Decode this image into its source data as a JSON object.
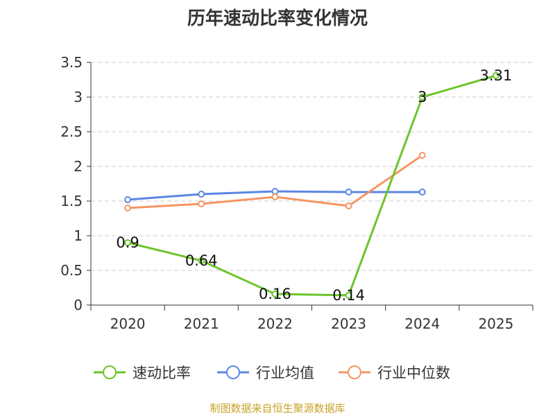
{
  "chart_data": {
    "type": "line",
    "title": "历年速动比率变化情况",
    "categories": [
      "2020",
      "2021",
      "2022",
      "2023",
      "2024",
      "2025"
    ],
    "y_ticks": [
      "0",
      "0.5",
      "1",
      "1.5",
      "2",
      "2.5",
      "3",
      "3.5"
    ],
    "ylim": [
      0,
      3.5
    ],
    "grid": true,
    "legend_position": "bottom",
    "series": [
      {
        "name": "速动比率",
        "color": "#6cc52a",
        "values": [
          0.9,
          0.64,
          0.16,
          0.14,
          3,
          3.31
        ],
        "labels": [
          "0.9",
          "0.64",
          "0.16",
          "0.14",
          "3",
          "3.31"
        ]
      },
      {
        "name": "行业均值",
        "color": "#5b86e5",
        "values": [
          1.52,
          1.6,
          1.64,
          1.63,
          1.63,
          null
        ]
      },
      {
        "name": "行业中位数",
        "color": "#f59563",
        "values": [
          1.4,
          1.46,
          1.56,
          1.43,
          2.16,
          null
        ]
      }
    ]
  },
  "source": "制图数据来自恒生聚源数据库"
}
